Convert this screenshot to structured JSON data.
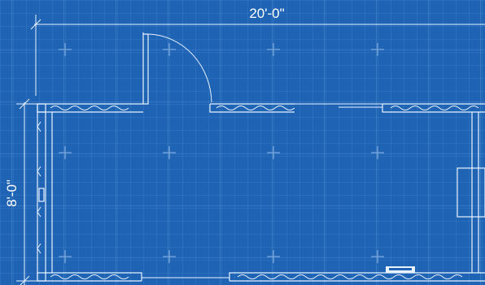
{
  "plan": {
    "width_dimension": "20'-0\"",
    "height_dimension": "8'-0\""
  },
  "colors": {
    "background": "#1f64b4",
    "fine_grid": "#3a7cc7",
    "major_grid": "#4a88cf",
    "line": "#e8f2ff",
    "crosshair": "#6f9fd8"
  }
}
